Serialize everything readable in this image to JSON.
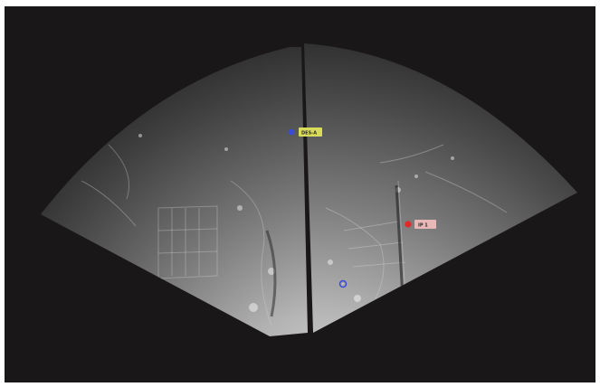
{
  "view": {
    "background_color": "#1a1718",
    "frame_color": "#ffffff"
  },
  "radar_image": {
    "icon": "radar-sar-image-icon",
    "tone_light": "#e6e6e6",
    "tone_dark": "#3a3a3a"
  },
  "markers": {
    "des": {
      "label": "DES-A",
      "icon": "waypoint-circle-icon",
      "dot_color": "#3a4bd6",
      "tag_color": "#d9dc5a",
      "text_color": "#2a2a2a"
    },
    "ip": {
      "label": "IP 1",
      "icon": "target-circle-icon",
      "dot_color": "#e02a2a",
      "tag_color": "#e8b8b8",
      "text_color": "#2a2a2a"
    },
    "own": {
      "icon": "ownship-ring-icon",
      "ring_color": "#3a4bd6"
    }
  }
}
